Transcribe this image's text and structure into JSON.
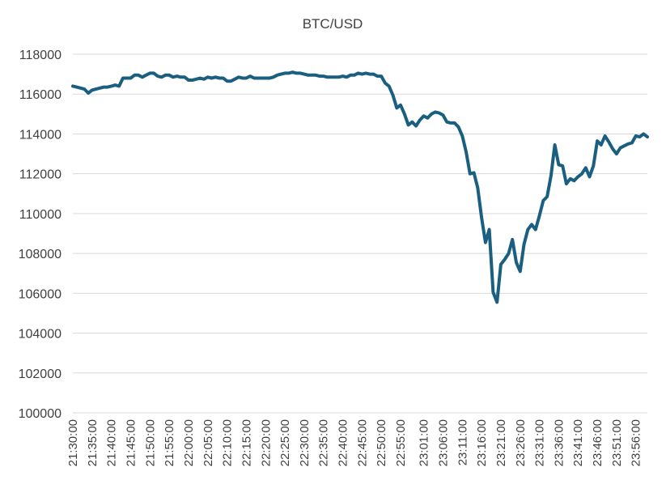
{
  "chart_data": {
    "type": "line",
    "title": "BTC/USD",
    "xlabel": "",
    "ylabel": "",
    "ylim": [
      100000,
      118000
    ],
    "y_ticks": [
      100000,
      102000,
      104000,
      106000,
      108000,
      110000,
      112000,
      114000,
      116000,
      118000
    ],
    "x_tick_labels": [
      "21:30:00",
      "21:35:00",
      "21:40:00",
      "21:45:00",
      "21:50:00",
      "21:55:00",
      "22:00:00",
      "22:05:00",
      "22:10:00",
      "22:15:00",
      "22:20:00",
      "22:25:00",
      "22:30:00",
      "22:35:00",
      "22:40:00",
      "22:45:00",
      "22:50:00",
      "22:55:00",
      "23:01:00",
      "23:06:00",
      "23:11:00",
      "23:16:00",
      "23:21:00",
      "23:26:00",
      "23:31:00",
      "23:36:00",
      "23:41:00",
      "23:46:00",
      "23:51:00",
      "23:56:00"
    ],
    "x_range": [
      "21:30:00",
      "23:59:00"
    ],
    "grid": true,
    "legend": "none",
    "color": "#1b5f80",
    "series": [
      {
        "name": "",
        "points": [
          [
            "21:30:00",
            116400
          ],
          [
            "21:31:00",
            116350
          ],
          [
            "21:32:00",
            116300
          ],
          [
            "21:33:00",
            116250
          ],
          [
            "21:34:00",
            116050
          ],
          [
            "21:35:00",
            116200
          ],
          [
            "21:36:00",
            116250
          ],
          [
            "21:37:00",
            116300
          ],
          [
            "21:38:00",
            116350
          ],
          [
            "21:39:00",
            116350
          ],
          [
            "21:40:00",
            116400
          ],
          [
            "21:41:00",
            116450
          ],
          [
            "21:42:00",
            116400
          ],
          [
            "21:43:00",
            116800
          ],
          [
            "21:44:00",
            116800
          ],
          [
            "21:45:00",
            116800
          ],
          [
            "21:46:00",
            116950
          ],
          [
            "21:47:00",
            116950
          ],
          [
            "21:48:00",
            116850
          ],
          [
            "21:49:00",
            116950
          ],
          [
            "21:50:00",
            117050
          ],
          [
            "21:51:00",
            117050
          ],
          [
            "21:52:00",
            116900
          ],
          [
            "21:53:00",
            116850
          ],
          [
            "21:54:00",
            116950
          ],
          [
            "21:55:00",
            116950
          ],
          [
            "21:56:00",
            116850
          ],
          [
            "21:57:00",
            116900
          ],
          [
            "21:58:00",
            116850
          ],
          [
            "21:59:00",
            116850
          ],
          [
            "22:00:00",
            116700
          ],
          [
            "22:01:00",
            116700
          ],
          [
            "22:02:00",
            116750
          ],
          [
            "22:03:00",
            116800
          ],
          [
            "22:04:00",
            116750
          ],
          [
            "22:05:00",
            116850
          ],
          [
            "22:06:00",
            116800
          ],
          [
            "22:07:00",
            116850
          ],
          [
            "22:08:00",
            116800
          ],
          [
            "22:09:00",
            116800
          ],
          [
            "22:10:00",
            116650
          ],
          [
            "22:11:00",
            116650
          ],
          [
            "22:12:00",
            116750
          ],
          [
            "22:13:00",
            116850
          ],
          [
            "22:14:00",
            116800
          ],
          [
            "22:15:00",
            116800
          ],
          [
            "22:16:00",
            116900
          ],
          [
            "22:17:00",
            116800
          ],
          [
            "22:18:00",
            116800
          ],
          [
            "22:19:00",
            116800
          ],
          [
            "22:20:00",
            116800
          ],
          [
            "22:21:00",
            116800
          ],
          [
            "22:22:00",
            116850
          ],
          [
            "22:23:00",
            116950
          ],
          [
            "22:24:00",
            117000
          ],
          [
            "22:25:00",
            117050
          ],
          [
            "22:26:00",
            117050
          ],
          [
            "22:27:00",
            117100
          ],
          [
            "22:28:00",
            117050
          ],
          [
            "22:29:00",
            117050
          ],
          [
            "22:30:00",
            117000
          ],
          [
            "22:31:00",
            116950
          ],
          [
            "22:32:00",
            116950
          ],
          [
            "22:33:00",
            116950
          ],
          [
            "22:34:00",
            116900
          ],
          [
            "22:35:00",
            116900
          ],
          [
            "22:36:00",
            116850
          ],
          [
            "22:37:00",
            116850
          ],
          [
            "22:38:00",
            116850
          ],
          [
            "22:39:00",
            116850
          ],
          [
            "22:40:00",
            116900
          ],
          [
            "22:41:00",
            116850
          ],
          [
            "22:42:00",
            116950
          ],
          [
            "22:43:00",
            116950
          ],
          [
            "22:44:00",
            117050
          ],
          [
            "22:45:00",
            117000
          ],
          [
            "22:46:00",
            117050
          ],
          [
            "22:47:00",
            117000
          ],
          [
            "22:48:00",
            117000
          ],
          [
            "22:49:00",
            116900
          ],
          [
            "22:50:00",
            116900
          ],
          [
            "22:51:00",
            116550
          ],
          [
            "22:52:00",
            116400
          ],
          [
            "22:53:00",
            115950
          ],
          [
            "22:54:00",
            115300
          ],
          [
            "22:55:00",
            115450
          ],
          [
            "22:56:00",
            115000
          ],
          [
            "22:57:00",
            114450
          ],
          [
            "22:58:00",
            114600
          ],
          [
            "22:59:00",
            114400
          ],
          [
            "23:00:00",
            114700
          ],
          [
            "23:01:00",
            114900
          ],
          [
            "23:02:00",
            114800
          ],
          [
            "23:03:00",
            115000
          ],
          [
            "23:04:00",
            115100
          ],
          [
            "23:05:00",
            115050
          ],
          [
            "23:06:00",
            114950
          ],
          [
            "23:07:00",
            114600
          ],
          [
            "23:08:00",
            114550
          ],
          [
            "23:09:00",
            114550
          ],
          [
            "23:10:00",
            114350
          ],
          [
            "23:11:00",
            113900
          ],
          [
            "23:12:00",
            113100
          ],
          [
            "23:13:00",
            112000
          ],
          [
            "23:14:00",
            112050
          ],
          [
            "23:15:00",
            111300
          ],
          [
            "23:16:00",
            109800
          ],
          [
            "23:17:00",
            108550
          ],
          [
            "23:18:00",
            109200
          ],
          [
            "23:19:00",
            106050
          ],
          [
            "23:20:00",
            105550
          ],
          [
            "23:21:00",
            107450
          ],
          [
            "23:22:00",
            107700
          ],
          [
            "23:23:00",
            108000
          ],
          [
            "23:24:00",
            108700
          ],
          [
            "23:25:00",
            107550
          ],
          [
            "23:26:00",
            107100
          ],
          [
            "23:27:00",
            108450
          ],
          [
            "23:28:00",
            109200
          ],
          [
            "23:29:00",
            109450
          ],
          [
            "23:30:00",
            109200
          ],
          [
            "23:31:00",
            109900
          ],
          [
            "23:32:00",
            110650
          ],
          [
            "23:33:00",
            110850
          ],
          [
            "23:34:00",
            111900
          ],
          [
            "23:35:00",
            113450
          ],
          [
            "23:36:00",
            112450
          ],
          [
            "23:37:00",
            112400
          ],
          [
            "23:38:00",
            111500
          ],
          [
            "23:39:00",
            111750
          ],
          [
            "23:40:00",
            111650
          ],
          [
            "23:41:00",
            111850
          ],
          [
            "23:42:00",
            112000
          ],
          [
            "23:43:00",
            112300
          ],
          [
            "23:44:00",
            111850
          ],
          [
            "23:45:00",
            112400
          ],
          [
            "23:46:00",
            113650
          ],
          [
            "23:47:00",
            113450
          ],
          [
            "23:48:00",
            113900
          ],
          [
            "23:49:00",
            113600
          ],
          [
            "23:50:00",
            113250
          ],
          [
            "23:51:00",
            113000
          ],
          [
            "23:52:00",
            113300
          ],
          [
            "23:53:00",
            113400
          ],
          [
            "23:54:00",
            113500
          ],
          [
            "23:55:00",
            113550
          ],
          [
            "23:56:00",
            113900
          ],
          [
            "23:57:00",
            113850
          ],
          [
            "23:58:00",
            114000
          ],
          [
            "23:59:00",
            113850
          ]
        ]
      }
    ]
  }
}
